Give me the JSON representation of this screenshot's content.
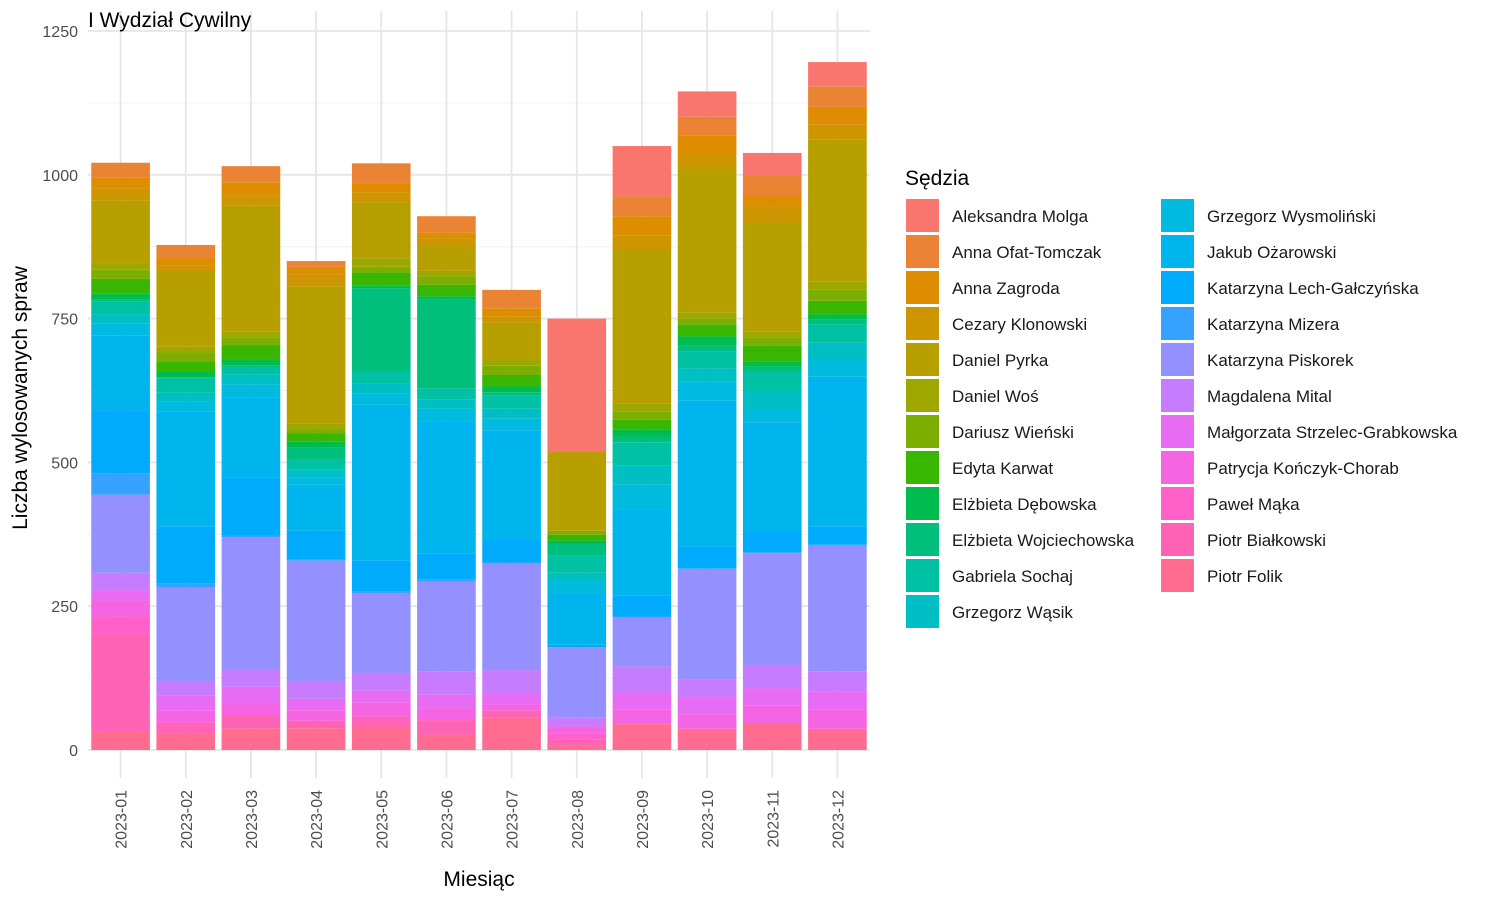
{
  "chart_data": {
    "type": "bar",
    "stacked": true,
    "title": "I Wydział Cywilny",
    "xlabel": "Miesiąc",
    "ylabel": "Liczba wylosowanych spraw",
    "ylim": [
      0,
      1250
    ],
    "yticks": [
      0,
      250,
      500,
      750,
      1000,
      1250
    ],
    "grid": true,
    "legend_title": "Sędzia",
    "legend_position": "right",
    "categories": [
      "2023-01",
      "2023-02",
      "2023-03",
      "2023-04",
      "2023-05",
      "2023-06",
      "2023-07",
      "2023-08",
      "2023-09",
      "2023-10",
      "2023-11",
      "2023-12"
    ],
    "series": [
      {
        "name": "Aleksandra Molga",
        "color": "#F8766D",
        "values": [
          0,
          0,
          0,
          0,
          0,
          0,
          0,
          232,
          87,
          44,
          40,
          42
        ]
      },
      {
        "name": "Anna Ofat-Tomczak",
        "color": "#EB8335",
        "values": [
          26,
          21,
          28,
          10,
          35,
          28,
          32,
          0,
          35,
          33,
          34,
          36
        ]
      },
      {
        "name": "Anna Zagroda",
        "color": "#DE8C00",
        "values": [
          19,
          14,
          24,
          14,
          16,
          10,
          15,
          0,
          33,
          31,
          19,
          31
        ]
      },
      {
        "name": "Cezary Klonowski",
        "color": "#CD9600",
        "values": [
          21,
          12,
          16,
          20,
          17,
          12,
          10,
          0,
          24,
          26,
          28,
          26
        ]
      },
      {
        "name": "Daniel Pyrka",
        "color": "#B79F00",
        "values": [
          110,
          130,
          220,
          238,
          97,
          45,
          65,
          137,
          268,
          250,
          190,
          246
        ]
      },
      {
        "name": "Daniel Woś",
        "color": "#9DA700",
        "values": [
          10,
          10,
          10,
          10,
          15,
          10,
          10,
          0,
          14,
          11,
          10,
          14
        ]
      },
      {
        "name": "Dariusz Wieński",
        "color": "#7CAE00",
        "values": [
          16,
          15,
          13,
          7,
          10,
          14,
          16,
          7,
          15,
          10,
          14,
          20
        ]
      },
      {
        "name": "Edyta Karwat",
        "color": "#39B600",
        "values": [
          26,
          18,
          25,
          15,
          22,
          20,
          20,
          10,
          17,
          21,
          27,
          24
        ]
      },
      {
        "name": "Elżbieta Dębowska",
        "color": "#00BB4E",
        "values": [
          10,
          10,
          10,
          10,
          5,
          5,
          10,
          5,
          12,
          15,
          10,
          9
        ]
      },
      {
        "name": "Elżbieta Wojciechowska",
        "color": "#00BF7D",
        "values": [
          3,
          2,
          4,
          20,
          145,
          155,
          5,
          21,
          10,
          11,
          8,
          8
        ]
      },
      {
        "name": "Gabriela Sochaj",
        "color": "#00C1A3",
        "values": [
          23,
          25,
          12,
          18,
          21,
          20,
          23,
          30,
          40,
          30,
          33,
          32
        ]
      },
      {
        "name": "Grzegorz Wąsik",
        "color": "#00BFC4",
        "values": [
          15,
          15,
          17,
          14,
          17,
          16,
          18,
          15,
          34,
          23,
          33,
          30
        ]
      },
      {
        "name": "Grzegorz Wysmoliński",
        "color": "#00BAE0",
        "values": [
          21,
          17,
          23,
          13,
          20,
          22,
          20,
          20,
          43,
          32,
          23,
          29
        ]
      },
      {
        "name": "Jakub Ożarowski",
        "color": "#00B5EE",
        "values": [
          130,
          200,
          140,
          80,
          270,
          230,
          190,
          90,
          150,
          255,
          190,
          260
        ]
      },
      {
        "name": "Katarzyna Lech-Gałczyńska",
        "color": "#00ABFD",
        "values": [
          110,
          100,
          100,
          50,
          55,
          45,
          40,
          4,
          36,
          37,
          35,
          32
        ]
      },
      {
        "name": "Katarzyna Mizera",
        "color": "#35A2FF",
        "values": [
          37,
          7,
          3,
          2,
          2,
          3,
          2,
          1,
          2,
          2,
          2,
          2
        ]
      },
      {
        "name": "Katarzyna Piskorek",
        "color": "#9590FF",
        "values": [
          136,
          162,
          230,
          210,
          140,
          156,
          185,
          122,
          85,
          192,
          195,
          218
        ]
      },
      {
        "name": "Magdalena Mital",
        "color": "#C77CFF",
        "values": [
          30,
          25,
          30,
          30,
          30,
          40,
          40,
          15,
          45,
          30,
          40,
          36
        ]
      },
      {
        "name": "Małgorzata Strzelec-Grabkowska",
        "color": "#E76BF3",
        "values": [
          18,
          27,
          30,
          20,
          20,
          25,
          20,
          0,
          30,
          30,
          30,
          30
        ]
      },
      {
        "name": "Patrycja Kończyk-Chorab",
        "color": "#F564E3",
        "values": [
          28,
          20,
          20,
          18,
          25,
          20,
          10,
          13,
          25,
          25,
          30,
          34
        ]
      },
      {
        "name": "Paweł Mąka",
        "color": "#FF61C9",
        "values": [
          30,
          0,
          0,
          0,
          0,
          0,
          0,
          10,
          0,
          0,
          0,
          0
        ]
      },
      {
        "name": "Piotr Białkowski",
        "color": "#FF63B6",
        "values": [
          170,
          20,
          22,
          13,
          18,
          25,
          12,
          10,
          0,
          0,
          0,
          0
        ]
      },
      {
        "name": "Piotr Folik",
        "color": "#FF6C90",
        "values": [
          32,
          28,
          38,
          38,
          40,
          27,
          57,
          8,
          45,
          37,
          47,
          37
        ]
      }
    ]
  }
}
